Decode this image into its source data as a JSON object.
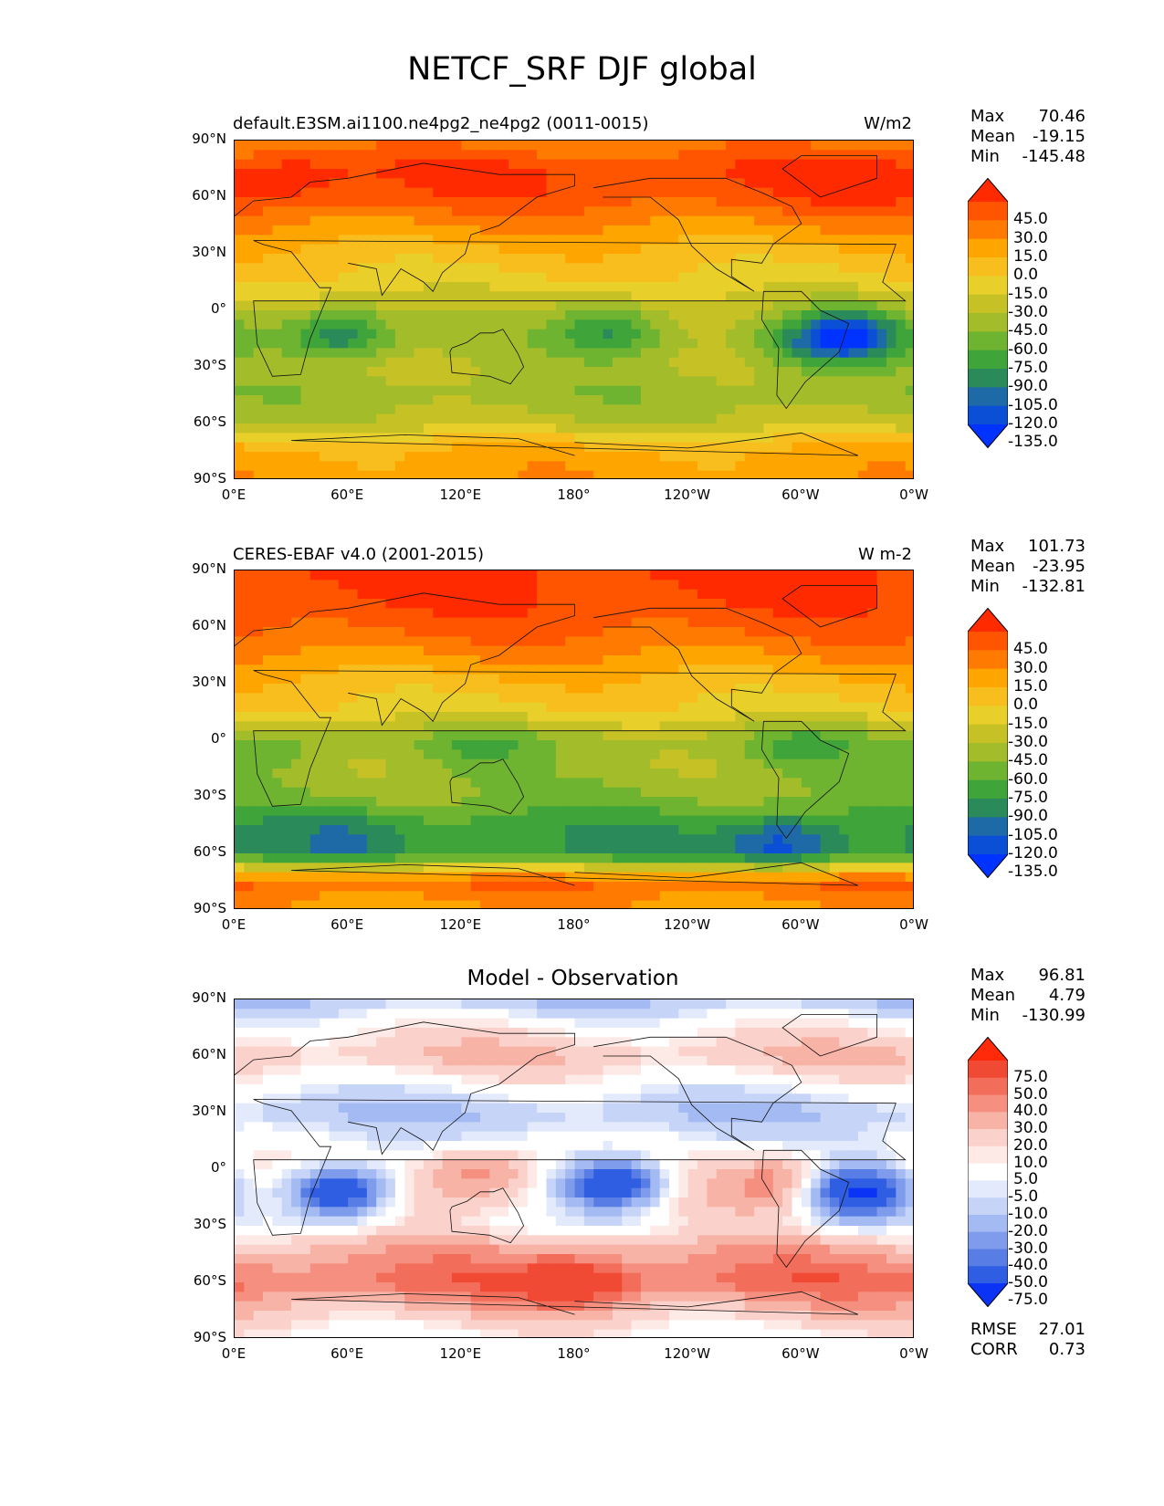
{
  "figure_title": "NETCF_SRF DJF global",
  "x_ticks": [
    "0°E",
    "60°E",
    "120°E",
    "180°",
    "120°W",
    "60°W",
    "0°W"
  ],
  "y_ticks": [
    "90°N",
    "60°N",
    "30°N",
    "0°",
    "30°S",
    "60°S",
    "90°S"
  ],
  "panels": [
    {
      "title_left": "default.E3SM.ai1100.ne4pg2_ne4pg2 (0011-0015)",
      "title_right": "W/m2",
      "title_center": "",
      "stats": {
        "max_label": "Max",
        "max": "70.46",
        "mean_label": "Mean",
        "mean": "-19.15",
        "min_label": "Min",
        "min": "-145.48"
      },
      "colorbar_labels": [
        "45.0",
        "30.0",
        "15.0",
        "0.0",
        "-15.0",
        "-30.0",
        "-45.0",
        "-60.0",
        "-75.0",
        "-90.0",
        "-105.0",
        "-120.0",
        "-135.0"
      ],
      "colorbar_colors": [
        "#ff2a00",
        "#ff5500",
        "#ff7a00",
        "#ffa500",
        "#f7be1e",
        "#e8cf2a",
        "#c6c226",
        "#a3bd2a",
        "#6fb430",
        "#3fa43a",
        "#2a8a5a",
        "#1e6aa6",
        "#0a4fd6",
        "#0033ff"
      ]
    },
    {
      "title_left": "CERES-EBAF v4.0 (2001-2015)",
      "title_right": "W m-2",
      "title_center": "",
      "stats": {
        "max_label": "Max",
        "max": "101.73",
        "mean_label": "Mean",
        "mean": "-23.95",
        "min_label": "Min",
        "min": "-132.81"
      },
      "colorbar_labels": [
        "45.0",
        "30.0",
        "15.0",
        "0.0",
        "-15.0",
        "-30.0",
        "-45.0",
        "-60.0",
        "-75.0",
        "-90.0",
        "-105.0",
        "-120.0",
        "-135.0"
      ],
      "colorbar_colors": [
        "#ff2a00",
        "#ff5500",
        "#ff7a00",
        "#ffa500",
        "#f7be1e",
        "#e8cf2a",
        "#c6c226",
        "#a3bd2a",
        "#6fb430",
        "#3fa43a",
        "#2a8a5a",
        "#1e6aa6",
        "#0a4fd6",
        "#0033ff"
      ]
    },
    {
      "title_left": "",
      "title_right": "",
      "title_center": "Model - Observation",
      "stats": {
        "max_label": "Max",
        "max": "96.81",
        "mean_label": "Mean",
        "mean": "4.79",
        "min_label": "Min",
        "min": "-130.99"
      },
      "colorbar_labels": [
        "75.0",
        "50.0",
        "40.0",
        "30.0",
        "20.0",
        "10.0",
        "5.0",
        "-5.0",
        "-10.0",
        "-20.0",
        "-30.0",
        "-40.0",
        "-50.0",
        "-75.0"
      ],
      "colorbar_colors": [
        "#ff2a0a",
        "#f04a35",
        "#f26e5a",
        "#f58f7f",
        "#f8b3a7",
        "#fbd2cb",
        "#fde9e5",
        "#ffffff",
        "#e3eafb",
        "#c6d4f7",
        "#a4baf2",
        "#7f9cec",
        "#587ee6",
        "#2f5ee2",
        "#0a33f5"
      ],
      "metrics": {
        "rmse_label": "RMSE",
        "rmse": "27.01",
        "corr_label": "CORR",
        "corr": "0.73"
      }
    }
  ],
  "chart_data": [
    {
      "type": "heatmap",
      "title": "default.E3SM.ai1100.ne4pg2_ne4pg2 (0011-0015)",
      "units": "W/m2",
      "xlim": [
        0,
        360
      ],
      "ylim": [
        -90,
        90
      ],
      "levels": [
        -135,
        -120,
        -105,
        -90,
        -75,
        -60,
        -45,
        -30,
        -15,
        0,
        15,
        30,
        45
      ],
      "max": 70.46,
      "mean": -19.15,
      "min": -145.48,
      "zonal_profile": {
        "lat": [
          90,
          75,
          60,
          45,
          30,
          15,
          0,
          -15,
          -30,
          -45,
          -60,
          -75,
          -90
        ],
        "value": [
          20,
          45,
          40,
          15,
          -5,
          -20,
          -40,
          -50,
          -45,
          -55,
          -40,
          5,
          10
        ]
      },
      "features": [
        {
          "lon": 55,
          "lat": -12,
          "value": -105
        },
        {
          "lon": 200,
          "lat": -10,
          "value": -90
        },
        {
          "lon": 325,
          "lat": -13,
          "value": -135
        },
        {
          "lon": 300,
          "lat": -20,
          "value": -75
        },
        {
          "lon": 30,
          "lat": 70,
          "value": 60
        },
        {
          "lon": 330,
          "lat": 70,
          "value": 55
        }
      ]
    },
    {
      "type": "heatmap",
      "title": "CERES-EBAF v4.0 (2001-2015)",
      "units": "W m-2",
      "xlim": [
        0,
        360
      ],
      "ylim": [
        -90,
        90
      ],
      "levels": [
        -135,
        -120,
        -105,
        -90,
        -75,
        -60,
        -45,
        -30,
        -15,
        0,
        15,
        30,
        45
      ],
      "max": 101.73,
      "mean": -23.95,
      "min": -132.81,
      "zonal_profile": {
        "lat": [
          90,
          75,
          60,
          45,
          30,
          15,
          0,
          -15,
          -30,
          -45,
          -60,
          -75,
          -90
        ],
        "value": [
          50,
          45,
          35,
          15,
          -5,
          -20,
          -55,
          -50,
          -60,
          -85,
          -90,
          30,
          10
        ]
      },
      "features": [
        {
          "lon": 300,
          "lat": -5,
          "value": -80
        },
        {
          "lon": 25,
          "lat": -5,
          "value": -70
        },
        {
          "lon": 130,
          "lat": -5,
          "value": -75
        },
        {
          "lon": 60,
          "lat": -50,
          "value": -105
        },
        {
          "lon": 290,
          "lat": -55,
          "value": -130
        }
      ]
    },
    {
      "type": "heatmap",
      "title": "Model - Observation",
      "xlim": [
        0,
        360
      ],
      "ylim": [
        -90,
        90
      ],
      "levels": [
        -75,
        -50,
        -40,
        -30,
        -20,
        -10,
        -5,
        5,
        10,
        20,
        30,
        40,
        50,
        75
      ],
      "max": 96.81,
      "mean": 4.79,
      "min": -130.99,
      "rmse": 27.01,
      "corr": 0.73,
      "zonal_profile": {
        "lat": [
          90,
          75,
          60,
          45,
          30,
          15,
          0,
          -15,
          -30,
          -45,
          -60,
          -75,
          -90
        ],
        "value": [
          -20,
          5,
          20,
          0,
          -20,
          -5,
          10,
          15,
          5,
          30,
          45,
          20,
          0
        ]
      },
      "features": [
        {
          "lon": 55,
          "lat": -12,
          "value": -75
        },
        {
          "lon": 200,
          "lat": -8,
          "value": -75
        },
        {
          "lon": 330,
          "lat": -12,
          "value": -75
        },
        {
          "lon": 130,
          "lat": 0,
          "value": 40
        },
        {
          "lon": 290,
          "lat": -5,
          "value": 40
        },
        {
          "lon": 180,
          "lat": -60,
          "value": 75
        }
      ]
    }
  ]
}
